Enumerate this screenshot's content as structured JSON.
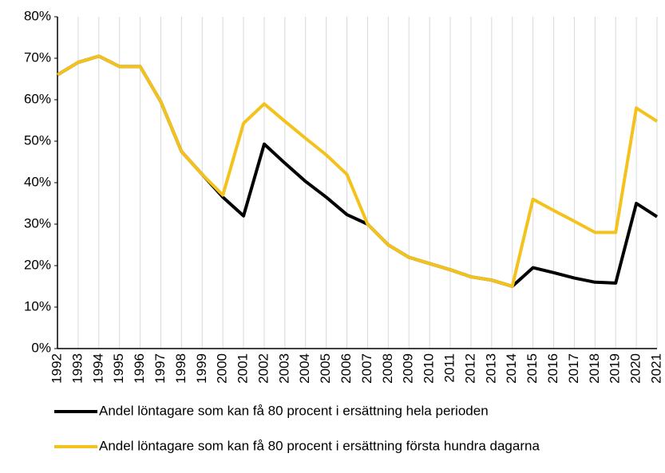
{
  "chart_data": {
    "type": "line",
    "categories": [
      "1992",
      "1993",
      "1994",
      "1995",
      "1996",
      "1997",
      "1998",
      "1999",
      "2000",
      "2001",
      "2002",
      "2003",
      "2004",
      "2005",
      "2006",
      "2007",
      "2008",
      "2009",
      "2010",
      "2011",
      "2012",
      "2013",
      "2014",
      "2015",
      "2016",
      "2017",
      "2018",
      "2019",
      "2020",
      "2021"
    ],
    "series": [
      {
        "name": "Andel löntagare som kan få 80 procent i ersättning hela perioden",
        "color": "#000000",
        "values": [
          66,
          69,
          70.5,
          68,
          68,
          59.5,
          47.5,
          42,
          36.5,
          32,
          49.3,
          44.7,
          40.3,
          36.5,
          32.3,
          30,
          25,
          22,
          20.5,
          19,
          17.3,
          16.5,
          15,
          19.5,
          18.3,
          17,
          16,
          15.8,
          35,
          31.8
        ]
      },
      {
        "name": "Andel löntagare som kan få 80 procent i ersättning första hundra dagarna",
        "color": "#f4c21c",
        "values": [
          66,
          69,
          70.5,
          68,
          68,
          59.5,
          47.5,
          42,
          37,
          54.3,
          59,
          54.8,
          50.7,
          46.7,
          42,
          30,
          25,
          22,
          20.5,
          19,
          17.3,
          16.5,
          15,
          36,
          33.3,
          30.7,
          28,
          28,
          58,
          54.8
        ]
      }
    ],
    "ylim": [
      0,
      80
    ],
    "yticks": [
      {
        "value": 0,
        "label": "0%"
      },
      {
        "value": 10,
        "label": "10%"
      },
      {
        "value": 20,
        "label": "20%"
      },
      {
        "value": 30,
        "label": "30%"
      },
      {
        "value": 40,
        "label": "40%"
      },
      {
        "value": 50,
        "label": "50%"
      },
      {
        "value": 60,
        "label": "60%"
      },
      {
        "value": 70,
        "label": "70%"
      },
      {
        "value": 80,
        "label": "80%"
      }
    ],
    "grid": true
  }
}
